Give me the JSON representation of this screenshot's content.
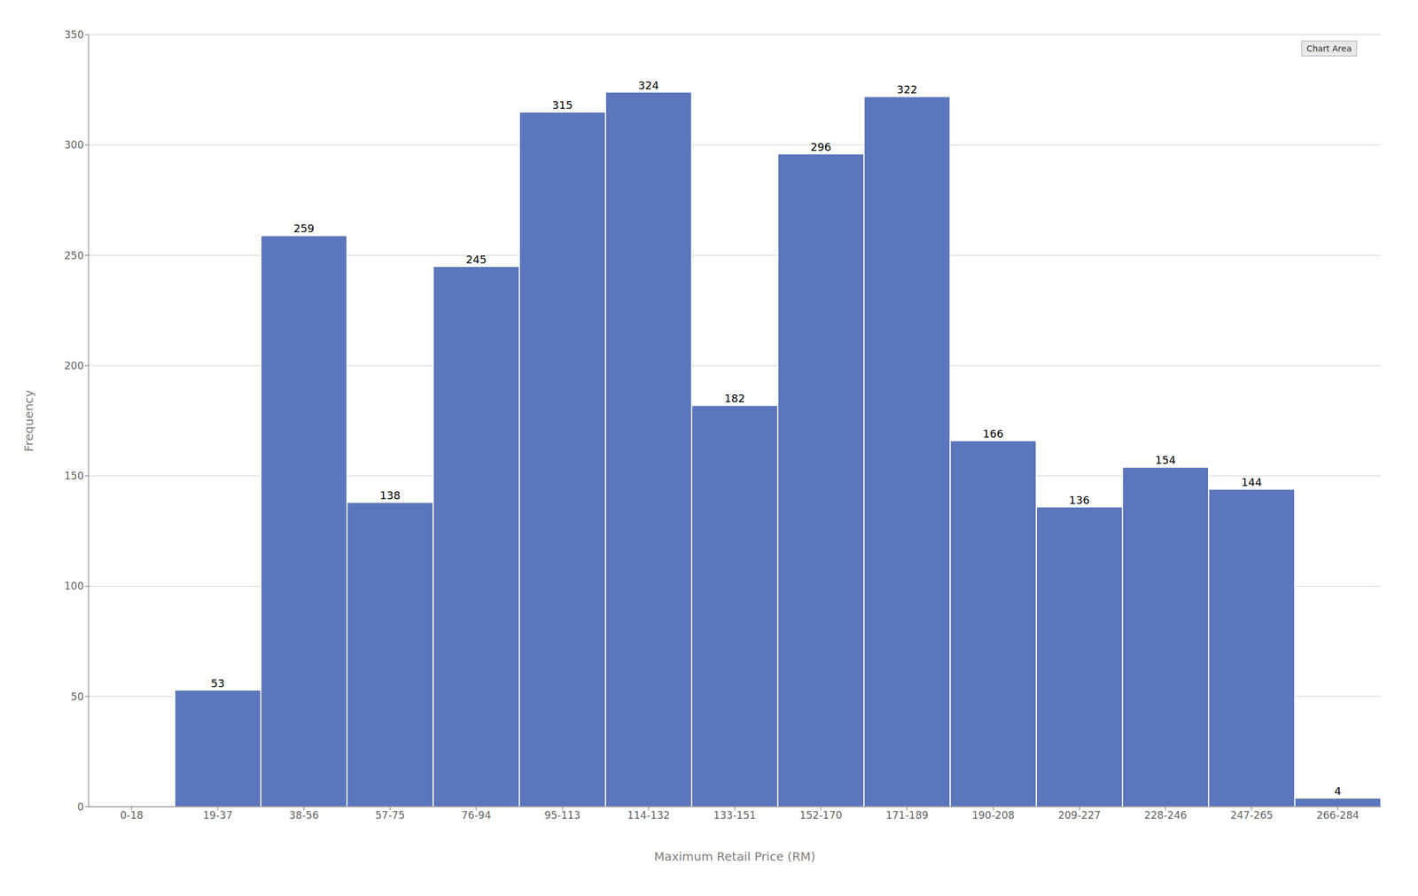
{
  "chart_data": {
    "type": "bar",
    "categories": [
      "0-18",
      "19-37",
      "38-56",
      "57-75",
      "76-94",
      "95-113",
      "114-132",
      "133-151",
      "152-170",
      "171-189",
      "190-208",
      "209-227",
      "228-246",
      "247-265",
      "266-284"
    ],
    "values": [
      0,
      53,
      259,
      138,
      245,
      315,
      324,
      182,
      296,
      322,
      166,
      136,
      154,
      144,
      4
    ],
    "color": "#5b76bc",
    "xlabel": "Maximum Retail Price (RM)",
    "ylabel": "Frequency",
    "ylim": [
      0,
      350
    ],
    "yticks": [
      0,
      50,
      100,
      150,
      200,
      250,
      300,
      350
    ],
    "grid": true,
    "data_labels": true,
    "annotations": [
      "Chart Area"
    ]
  }
}
